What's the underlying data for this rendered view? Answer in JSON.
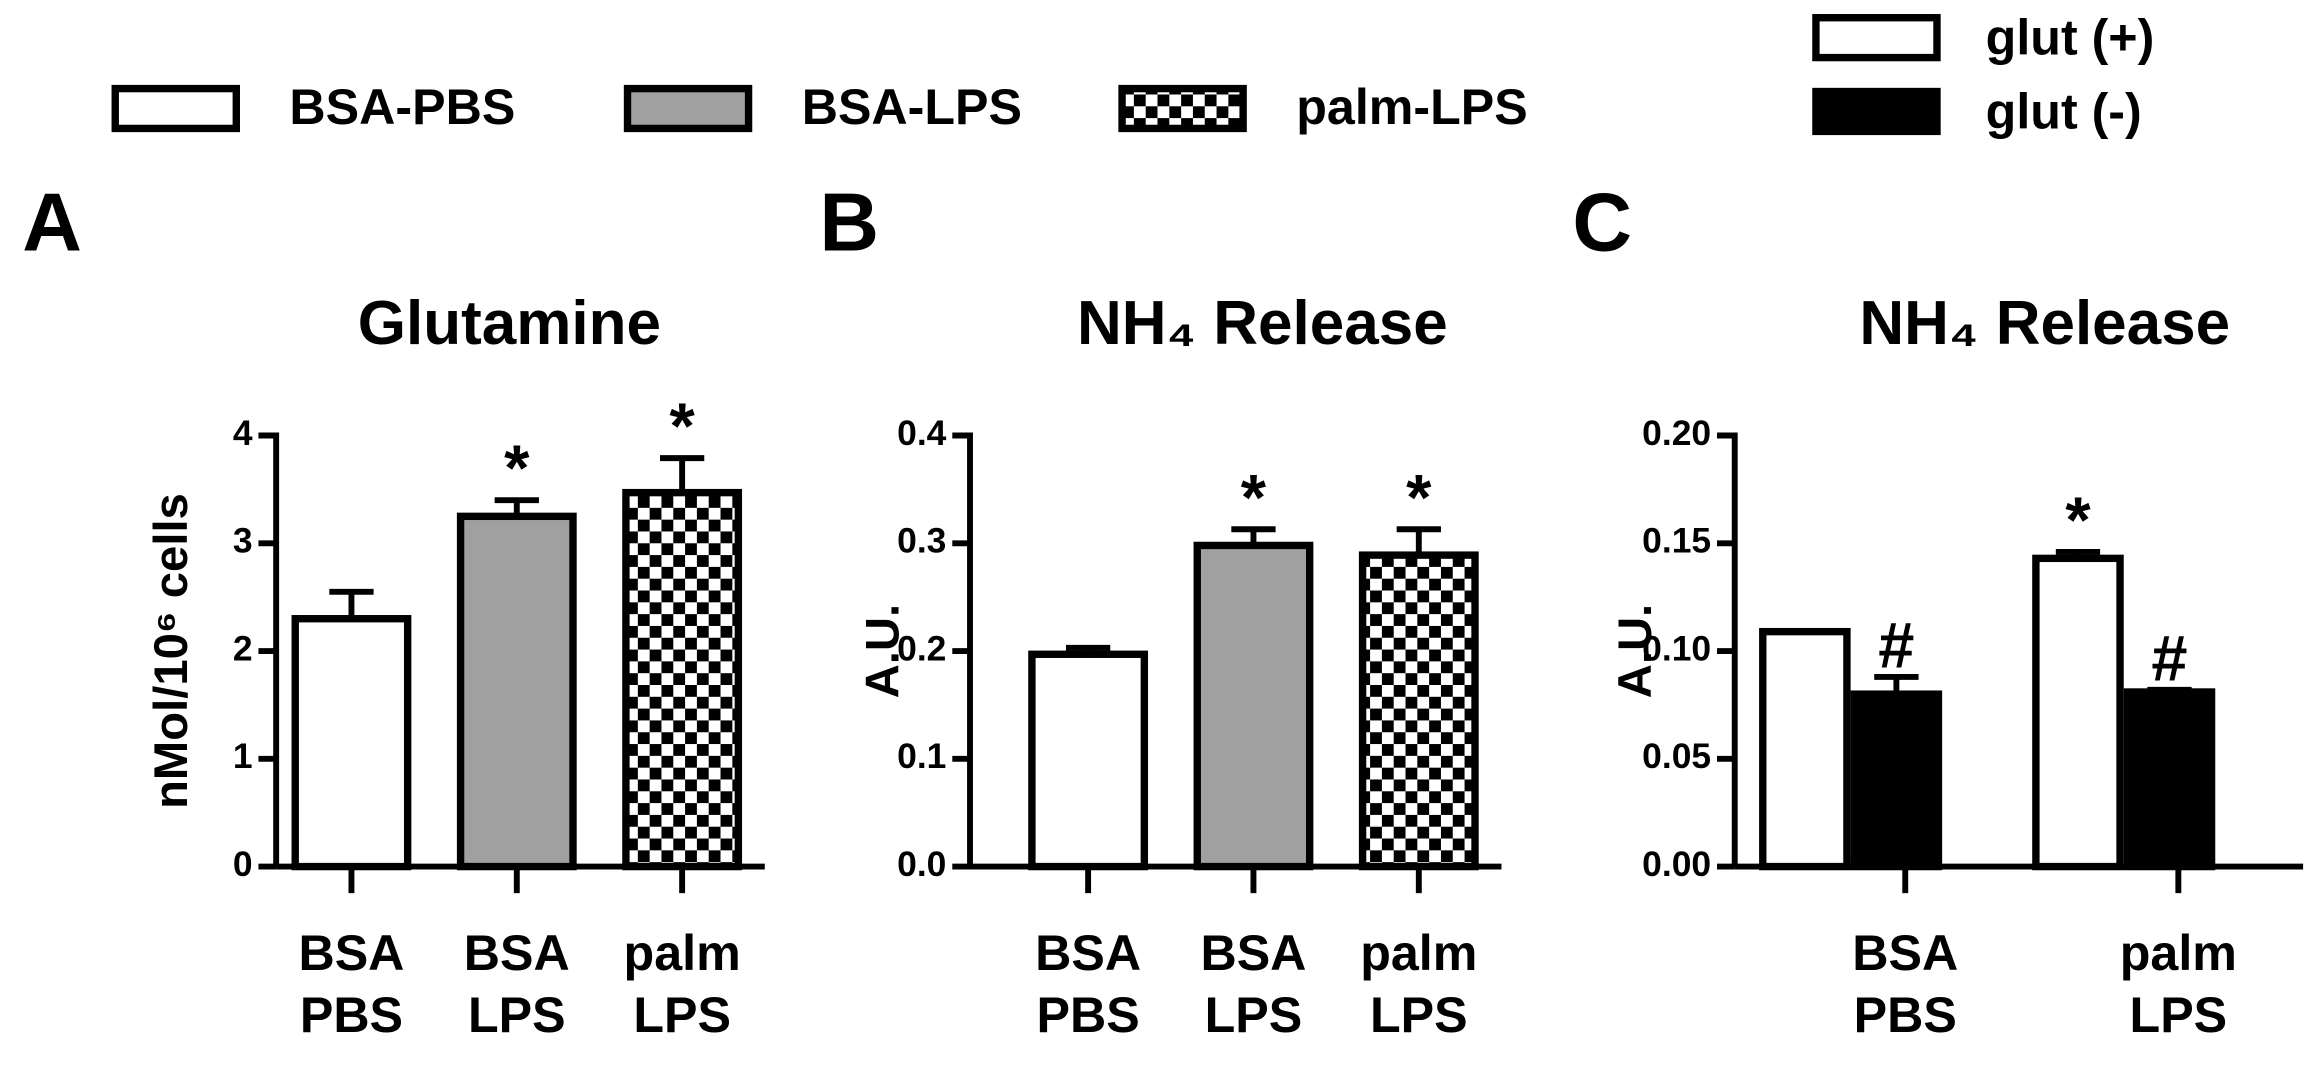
{
  "legend": [
    {
      "name": "BSA-PBS",
      "fill": "#ffffff"
    },
    {
      "name": "BSA-LPS",
      "fill": "#a0a0a0"
    },
    {
      "name": "palm-LPS",
      "fill": "checker"
    }
  ],
  "chart_data": [
    {
      "type": "bar",
      "panel": "A",
      "title": "Glutamine",
      "ylabel": "nMol/10⁶ cells",
      "categories": [
        [
          "BSA",
          "PBS"
        ],
        [
          "BSA",
          "LPS"
        ],
        [
          "palm",
          "LPS"
        ]
      ],
      "values": [
        2.3,
        3.25,
        3.47
      ],
      "errors": [
        0.25,
        0.15,
        0.32
      ],
      "marks": [
        null,
        "*",
        "*"
      ],
      "fills": [
        "#ffffff",
        "#a0a0a0",
        "checker"
      ],
      "ylim": [
        0,
        4
      ],
      "yticks": [
        0,
        1,
        2,
        3,
        4
      ]
    },
    {
      "type": "bar",
      "panel": "B",
      "title": "NH₄ Release",
      "ylabel": "A.U.",
      "categories": [
        [
          "BSA",
          "PBS"
        ],
        [
          "BSA",
          "LPS"
        ],
        [
          "palm",
          "LPS"
        ]
      ],
      "values": [
        0.197,
        0.298,
        0.289
      ],
      "errors": [
        0.006,
        0.015,
        0.024
      ],
      "marks": [
        null,
        "*",
        "*"
      ],
      "fills": [
        "#ffffff",
        "#a0a0a0",
        "checker"
      ],
      "ylim": [
        0,
        0.4
      ],
      "yticks": [
        {
          "value": 0,
          "label": "0.0"
        },
        0.1,
        0.2,
        0.3,
        0.4
      ]
    },
    {
      "type": "grouped-bar",
      "panel": "C",
      "title": "NH₄ Release",
      "ylabel": "A.U.",
      "categories": [
        [
          "BSA",
          "PBS"
        ],
        [
          "palm",
          "LPS"
        ]
      ],
      "series": [
        {
          "name": "glut (+)",
          "color": "#ffffff",
          "values": [
            0.109,
            0.143
          ],
          "errors": [
            0,
            0.003
          ],
          "marks": [
            null,
            "*"
          ]
        },
        {
          "name": "glut (-)",
          "color": "#000000",
          "values": [
            0.08,
            0.081
          ],
          "errors": [
            0.008,
            0.001
          ],
          "marks": [
            "#",
            "#"
          ]
        }
      ],
      "legend": "top-right",
      "ylim": [
        0,
        0.2
      ],
      "yticks": [
        {
          "value": 0,
          "label": "0.00"
        },
        0.05,
        {
          "value": 0.1,
          "label": "0.10"
        },
        0.15,
        {
          "value": 0.2,
          "label": "0.20"
        }
      ]
    }
  ]
}
